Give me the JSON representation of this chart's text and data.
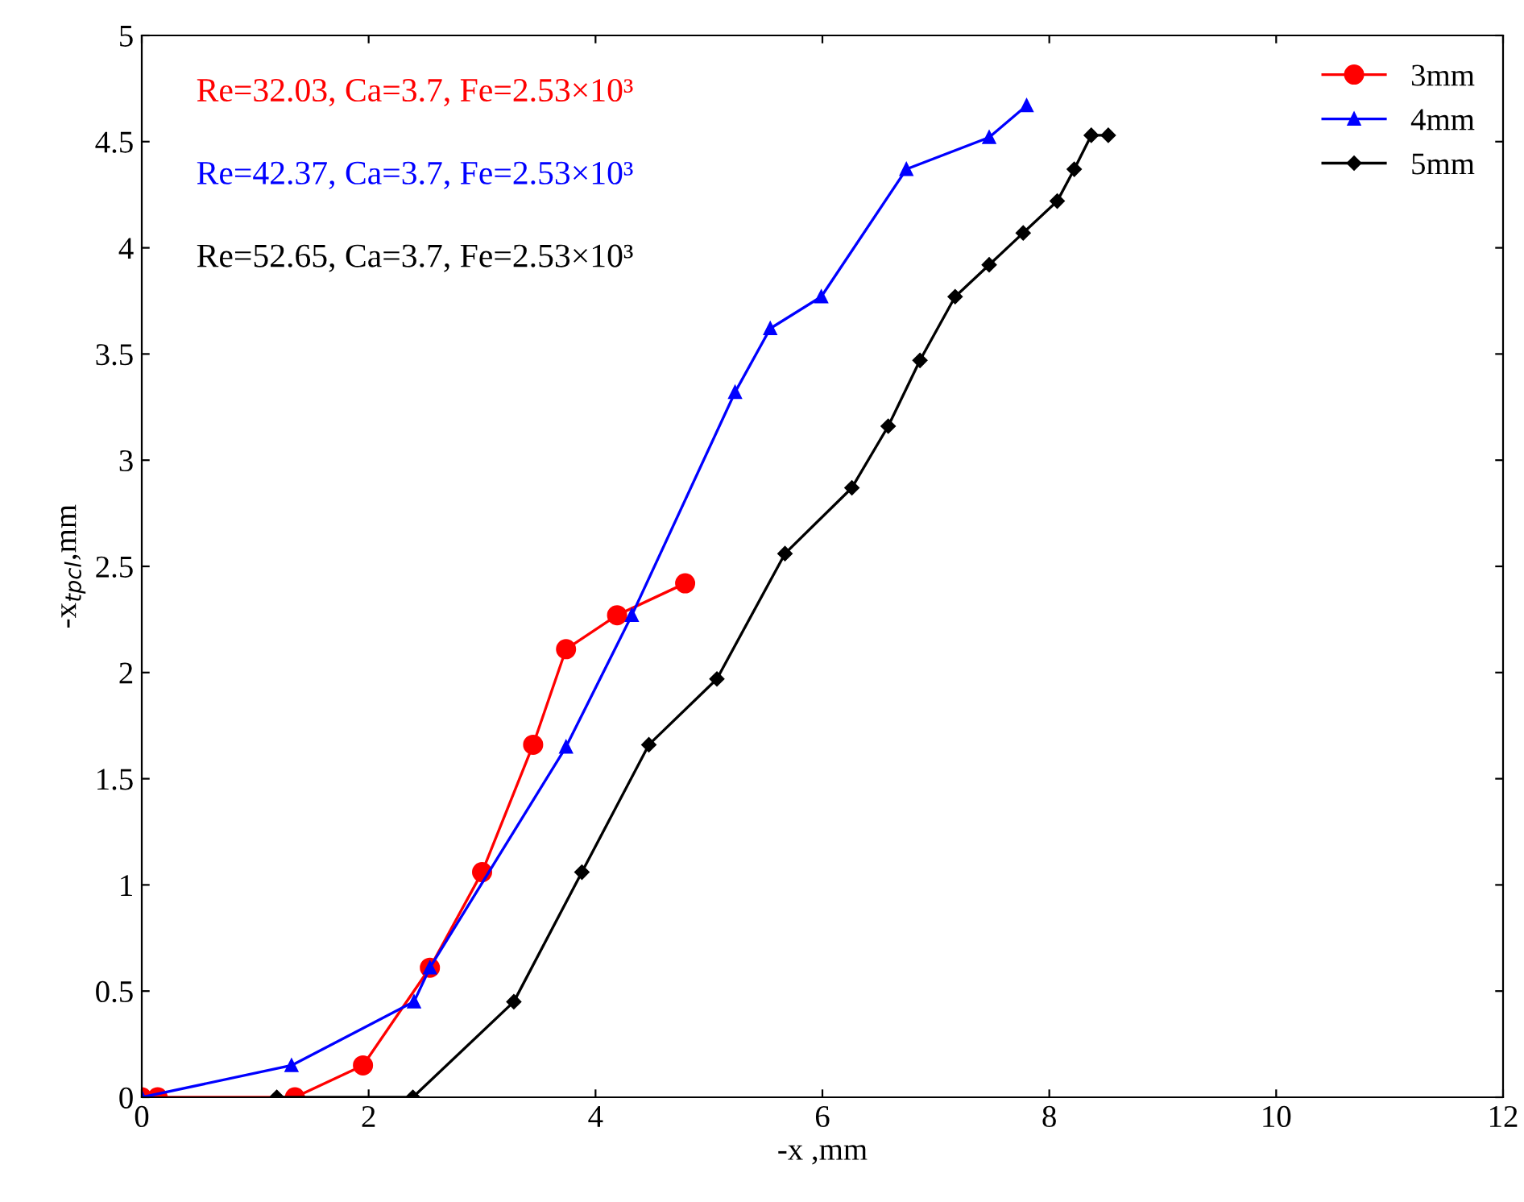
{
  "chart_data": {
    "type": "line",
    "xlabel": "-x ,mm",
    "ylabel": "-x$_{tpcl}$,mm",
    "xlim": [
      0,
      12
    ],
    "xticks": [
      0,
      2,
      4,
      6,
      8,
      10,
      12
    ],
    "ylim": [
      0,
      5
    ],
    "yticks": [
      0,
      0.5,
      1,
      1.5,
      2,
      2.5,
      3,
      3.5,
      4,
      4.5,
      5
    ],
    "grid": false,
    "legend": "top right",
    "line_style": "solid",
    "annotations": [
      "Re=32.03, Ca=3.7, Fe=2.53×10³",
      "Re=42.37, Ca=3.7, Fe=2.53×10³",
      "Re=52.65, Ca=3.7, Fe=2.53×10³"
    ],
    "series": [
      {
        "name": "3mm",
        "color": "#ff0000",
        "marker": "circle",
        "x": [
          0,
          0.14,
          1.35,
          1.95,
          2.54,
          3.0,
          3.45,
          3.74,
          4.19,
          4.79
        ],
        "values": [
          0,
          0,
          0,
          0.15,
          0.61,
          1.06,
          1.66,
          2.11,
          2.27,
          2.42
        ]
      },
      {
        "name": "4mm",
        "color": "#0000ff",
        "marker": "triangle",
        "x": [
          0,
          1.32,
          2.4,
          2.54,
          3.74,
          4.32,
          5.23,
          5.54,
          5.99,
          6.74,
          7.47,
          7.8
        ],
        "values": [
          0,
          0.15,
          0.45,
          0.61,
          1.65,
          2.27,
          3.32,
          3.62,
          3.77,
          4.37,
          4.52,
          4.67
        ]
      },
      {
        "name": "5mm",
        "color": "#000000",
        "marker": "diamond",
        "x": [
          1.19,
          2.39,
          3.28,
          3.88,
          4.47,
          5.07,
          5.67,
          6.26,
          6.58,
          6.86,
          7.17,
          7.47,
          7.77,
          8.07,
          8.22,
          8.37,
          8.52
        ],
        "values": [
          0,
          0,
          0.45,
          1.06,
          1.66,
          1.97,
          2.56,
          2.87,
          3.16,
          3.47,
          3.77,
          3.92,
          4.07,
          4.22,
          4.37,
          4.53,
          4.53
        ]
      }
    ]
  }
}
